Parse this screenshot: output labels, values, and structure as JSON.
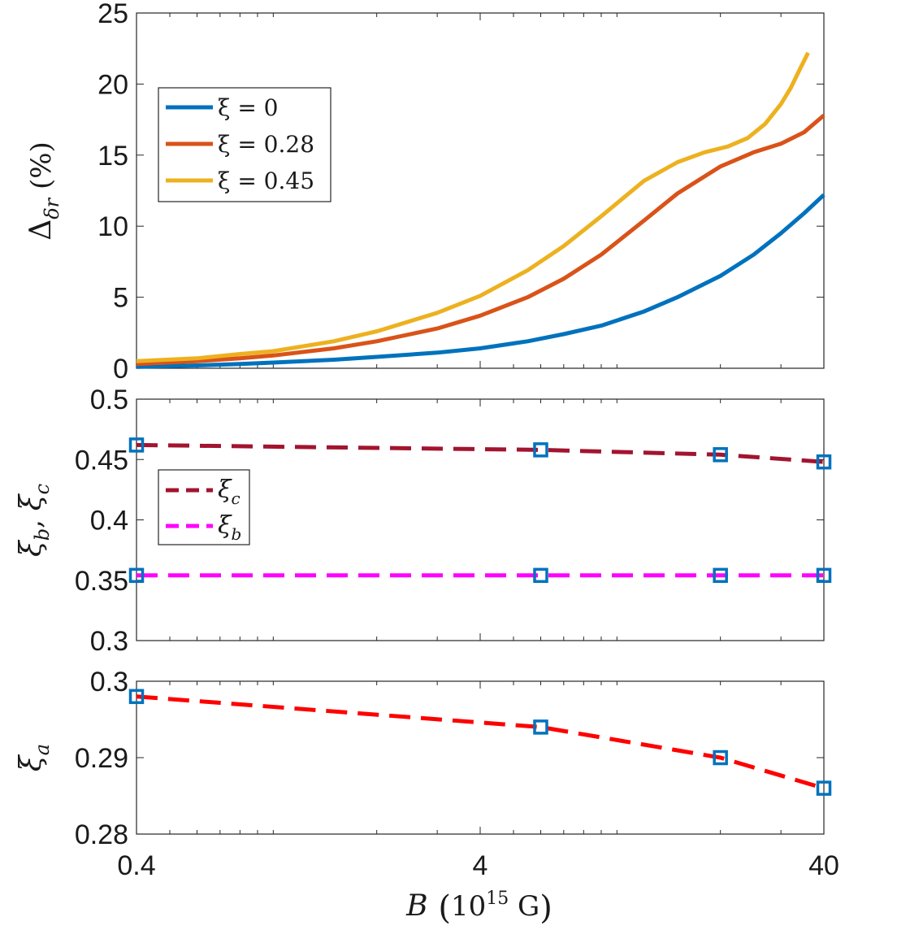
{
  "chart_data": [
    {
      "type": "line",
      "panel": "top",
      "xscale": "log",
      "xlim": [
        0.4,
        40
      ],
      "ylim": [
        0,
        25
      ],
      "yticks": [
        0,
        5,
        10,
        15,
        20,
        25
      ],
      "ytick_labels": [
        "0",
        "5",
        "10",
        "15",
        "20",
        "25"
      ],
      "ylabel": "Δ_δr (%)",
      "legend_position": "upper-left",
      "series": [
        {
          "name": "ξ = 0",
          "color": "#0072BD",
          "x": [
            0.4,
            0.6,
            0.8,
            1.0,
            1.5,
            2.0,
            3.0,
            4.0,
            5.5,
            7.0,
            9.0,
            12.0,
            15.0,
            20.0,
            25.0,
            30.0,
            35.0,
            40.0
          ],
          "y": [
            0.1,
            0.2,
            0.3,
            0.4,
            0.6,
            0.8,
            1.1,
            1.4,
            1.9,
            2.4,
            3.0,
            4.0,
            5.0,
            6.5,
            8.0,
            9.5,
            10.9,
            12.2
          ]
        },
        {
          "name": "ξ = 0.28",
          "color": "#D95319",
          "x": [
            0.4,
            0.6,
            0.8,
            1.0,
            1.5,
            2.0,
            3.0,
            4.0,
            5.5,
            7.0,
            9.0,
            12.0,
            15.0,
            20.0,
            25.0,
            30.0,
            35.0,
            40.0
          ],
          "y": [
            0.3,
            0.5,
            0.7,
            0.9,
            1.4,
            1.9,
            2.8,
            3.7,
            5.0,
            6.3,
            8.0,
            10.4,
            12.3,
            14.2,
            15.2,
            15.8,
            16.6,
            17.8
          ]
        },
        {
          "name": "ξ = 0.45",
          "color": "#EDB120",
          "x": [
            0.4,
            0.6,
            0.8,
            1.0,
            1.5,
            2.0,
            3.0,
            4.0,
            5.5,
            7.0,
            9.0,
            12.0,
            15.0,
            18.0,
            21.0,
            24.0,
            27.0,
            30.0,
            32.0,
            34.0,
            36.0
          ],
          "y": [
            0.5,
            0.7,
            1.0,
            1.2,
            1.9,
            2.6,
            3.9,
            5.1,
            6.9,
            8.6,
            10.7,
            13.2,
            14.5,
            15.2,
            15.6,
            16.2,
            17.2,
            18.6,
            19.7,
            21.0,
            22.2
          ]
        }
      ]
    },
    {
      "type": "line",
      "panel": "middle",
      "xscale": "log",
      "xlim": [
        0.4,
        40
      ],
      "ylim": [
        0.3,
        0.5
      ],
      "yticks": [
        0.3,
        0.35,
        0.4,
        0.45,
        0.5
      ],
      "ytick_labels": [
        "0.3",
        "0.35",
        "0.4",
        "0.45",
        "0.5"
      ],
      "ylabel": "ξ_b, ξ_c",
      "legend_position": "middle-left",
      "series": [
        {
          "name": "ξ_c",
          "color": "#A2142F",
          "dash": true,
          "x": [
            0.4,
            6.0,
            20.0,
            40.0
          ],
          "y": [
            0.462,
            0.458,
            0.454,
            0.448
          ]
        },
        {
          "name": "ξ_b",
          "color": "#FF00FF",
          "dash": true,
          "x": [
            0.4,
            6.0,
            20.0,
            40.0
          ],
          "y": [
            0.354,
            0.354,
            0.354,
            0.354
          ]
        }
      ],
      "markers": {
        "color": "#0072BD",
        "points": [
          {
            "x": 0.4,
            "y": 0.462
          },
          {
            "x": 6.0,
            "y": 0.458
          },
          {
            "x": 20.0,
            "y": 0.454
          },
          {
            "x": 40.0,
            "y": 0.448
          },
          {
            "x": 0.4,
            "y": 0.354
          },
          {
            "x": 6.0,
            "y": 0.354
          },
          {
            "x": 20.0,
            "y": 0.354
          },
          {
            "x": 40.0,
            "y": 0.354
          }
        ]
      }
    },
    {
      "type": "line",
      "panel": "bottom",
      "xscale": "log",
      "xlim": [
        0.4,
        40
      ],
      "ylim": [
        0.28,
        0.3
      ],
      "yticks": [
        0.28,
        0.29,
        0.3
      ],
      "ytick_labels": [
        "0.28",
        "0.29",
        "0.3"
      ],
      "ylabel": "ξ_a",
      "xticks": [
        0.4,
        4,
        40
      ],
      "xtick_labels": [
        "0.4",
        "4",
        "40"
      ],
      "xlabel": "B (10^15 G)",
      "series": [
        {
          "name": "ξ_a",
          "color": "#FF0000",
          "dash": true,
          "x": [
            0.4,
            6.0,
            20.0,
            40.0
          ],
          "y": [
            0.298,
            0.294,
            0.29,
            0.286
          ]
        }
      ],
      "markers": {
        "color": "#0072BD",
        "points": [
          {
            "x": 0.4,
            "y": 0.298
          },
          {
            "x": 6.0,
            "y": 0.294
          },
          {
            "x": 20.0,
            "y": 0.29
          },
          {
            "x": 40.0,
            "y": 0.286
          }
        ]
      }
    }
  ]
}
